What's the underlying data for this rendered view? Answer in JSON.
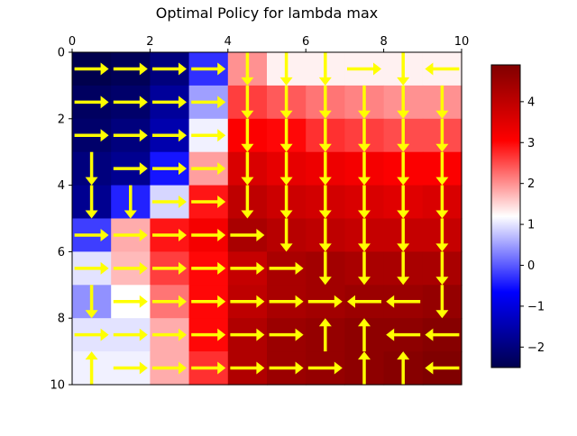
{
  "chart_data": {
    "type": "heatmap",
    "title": "Optimal Policy for lambda max",
    "xlabel": "",
    "ylabel": "",
    "xlim": [
      0,
      10
    ],
    "ylim": [
      10,
      0
    ],
    "x_ticks": [
      "0",
      "2",
      "4",
      "6",
      "8",
      "10"
    ],
    "y_ticks": [
      "0",
      "2",
      "4",
      "6",
      "8",
      "10"
    ],
    "colormap": "seismic",
    "colorbar": {
      "range": [
        -2.5,
        4.9
      ],
      "ticks": [
        "−2",
        "−1",
        "0",
        "1",
        "2",
        "3",
        "4"
      ]
    },
    "arrow_color": "#ffff00",
    "grid_columns": 10,
    "grid_rows": 10,
    "values": [
      [
        -2.5,
        -2.4,
        -2.0,
        -0.3,
        2.0,
        1.3,
        1.3,
        1.3,
        1.3,
        1.3
      ],
      [
        -2.3,
        -2.2,
        -1.7,
        0.5,
        2.6,
        2.4,
        2.2,
        2.1,
        2.0,
        2.0
      ],
      [
        -2.2,
        -2.0,
        -1.5,
        1.1,
        3.1,
        3.0,
        2.7,
        2.6,
        2.5,
        2.5
      ],
      [
        -2.0,
        -1.8,
        -0.5,
        1.9,
        3.6,
        3.4,
        3.3,
        3.2,
        3.1,
        3.1
      ],
      [
        -1.8,
        -0.4,
        0.9,
        2.9,
        4.0,
        3.8,
        3.7,
        3.6,
        3.5,
        3.6
      ],
      [
        -0.2,
        1.8,
        2.9,
        3.2,
        4.3,
        4.1,
        4.0,
        3.9,
        3.9,
        3.9
      ],
      [
        1.0,
        1.7,
        2.6,
        3.0,
        3.9,
        4.3,
        4.4,
        4.3,
        4.3,
        4.3
      ],
      [
        0.4,
        1.2,
        2.2,
        3.0,
        4.0,
        4.3,
        4.4,
        4.5,
        4.5,
        4.6
      ],
      [
        1.0,
        1.0,
        1.8,
        3.0,
        4.2,
        4.5,
        4.6,
        4.7,
        4.7,
        4.8
      ],
      [
        1.1,
        1.1,
        1.8,
        2.7,
        4.2,
        4.5,
        4.6,
        4.7,
        4.8,
        4.9
      ]
    ],
    "policy": [
      [
        "R",
        "R",
        "R",
        "R",
        "D",
        "D",
        "D",
        "R",
        "D",
        "L"
      ],
      [
        "R",
        "R",
        "R",
        "R",
        "D",
        "D",
        "D",
        "D",
        "D",
        "D"
      ],
      [
        "R",
        "R",
        "R",
        "R",
        "D",
        "D",
        "D",
        "D",
        "D",
        "D"
      ],
      [
        "D",
        "R",
        "R",
        "R",
        "D",
        "D",
        "D",
        "D",
        "D",
        "D"
      ],
      [
        "D",
        "D",
        "R",
        "R",
        "D",
        "D",
        "D",
        "D",
        "D",
        "D"
      ],
      [
        "R",
        "R",
        "R",
        "R",
        "R",
        "D",
        "D",
        "D",
        "D",
        "D"
      ],
      [
        "R",
        "R",
        "R",
        "R",
        "R",
        "R",
        "D",
        "D",
        "D",
        "D"
      ],
      [
        "D",
        "R",
        "R",
        "R",
        "R",
        "R",
        "R",
        "L",
        "L",
        "D"
      ],
      [
        "R",
        "R",
        "R",
        "R",
        "R",
        "R",
        "U",
        "U",
        "L",
        "L"
      ],
      [
        "U",
        "R",
        "R",
        "R",
        "R",
        "R",
        "R",
        "U",
        "U",
        "L"
      ]
    ]
  }
}
